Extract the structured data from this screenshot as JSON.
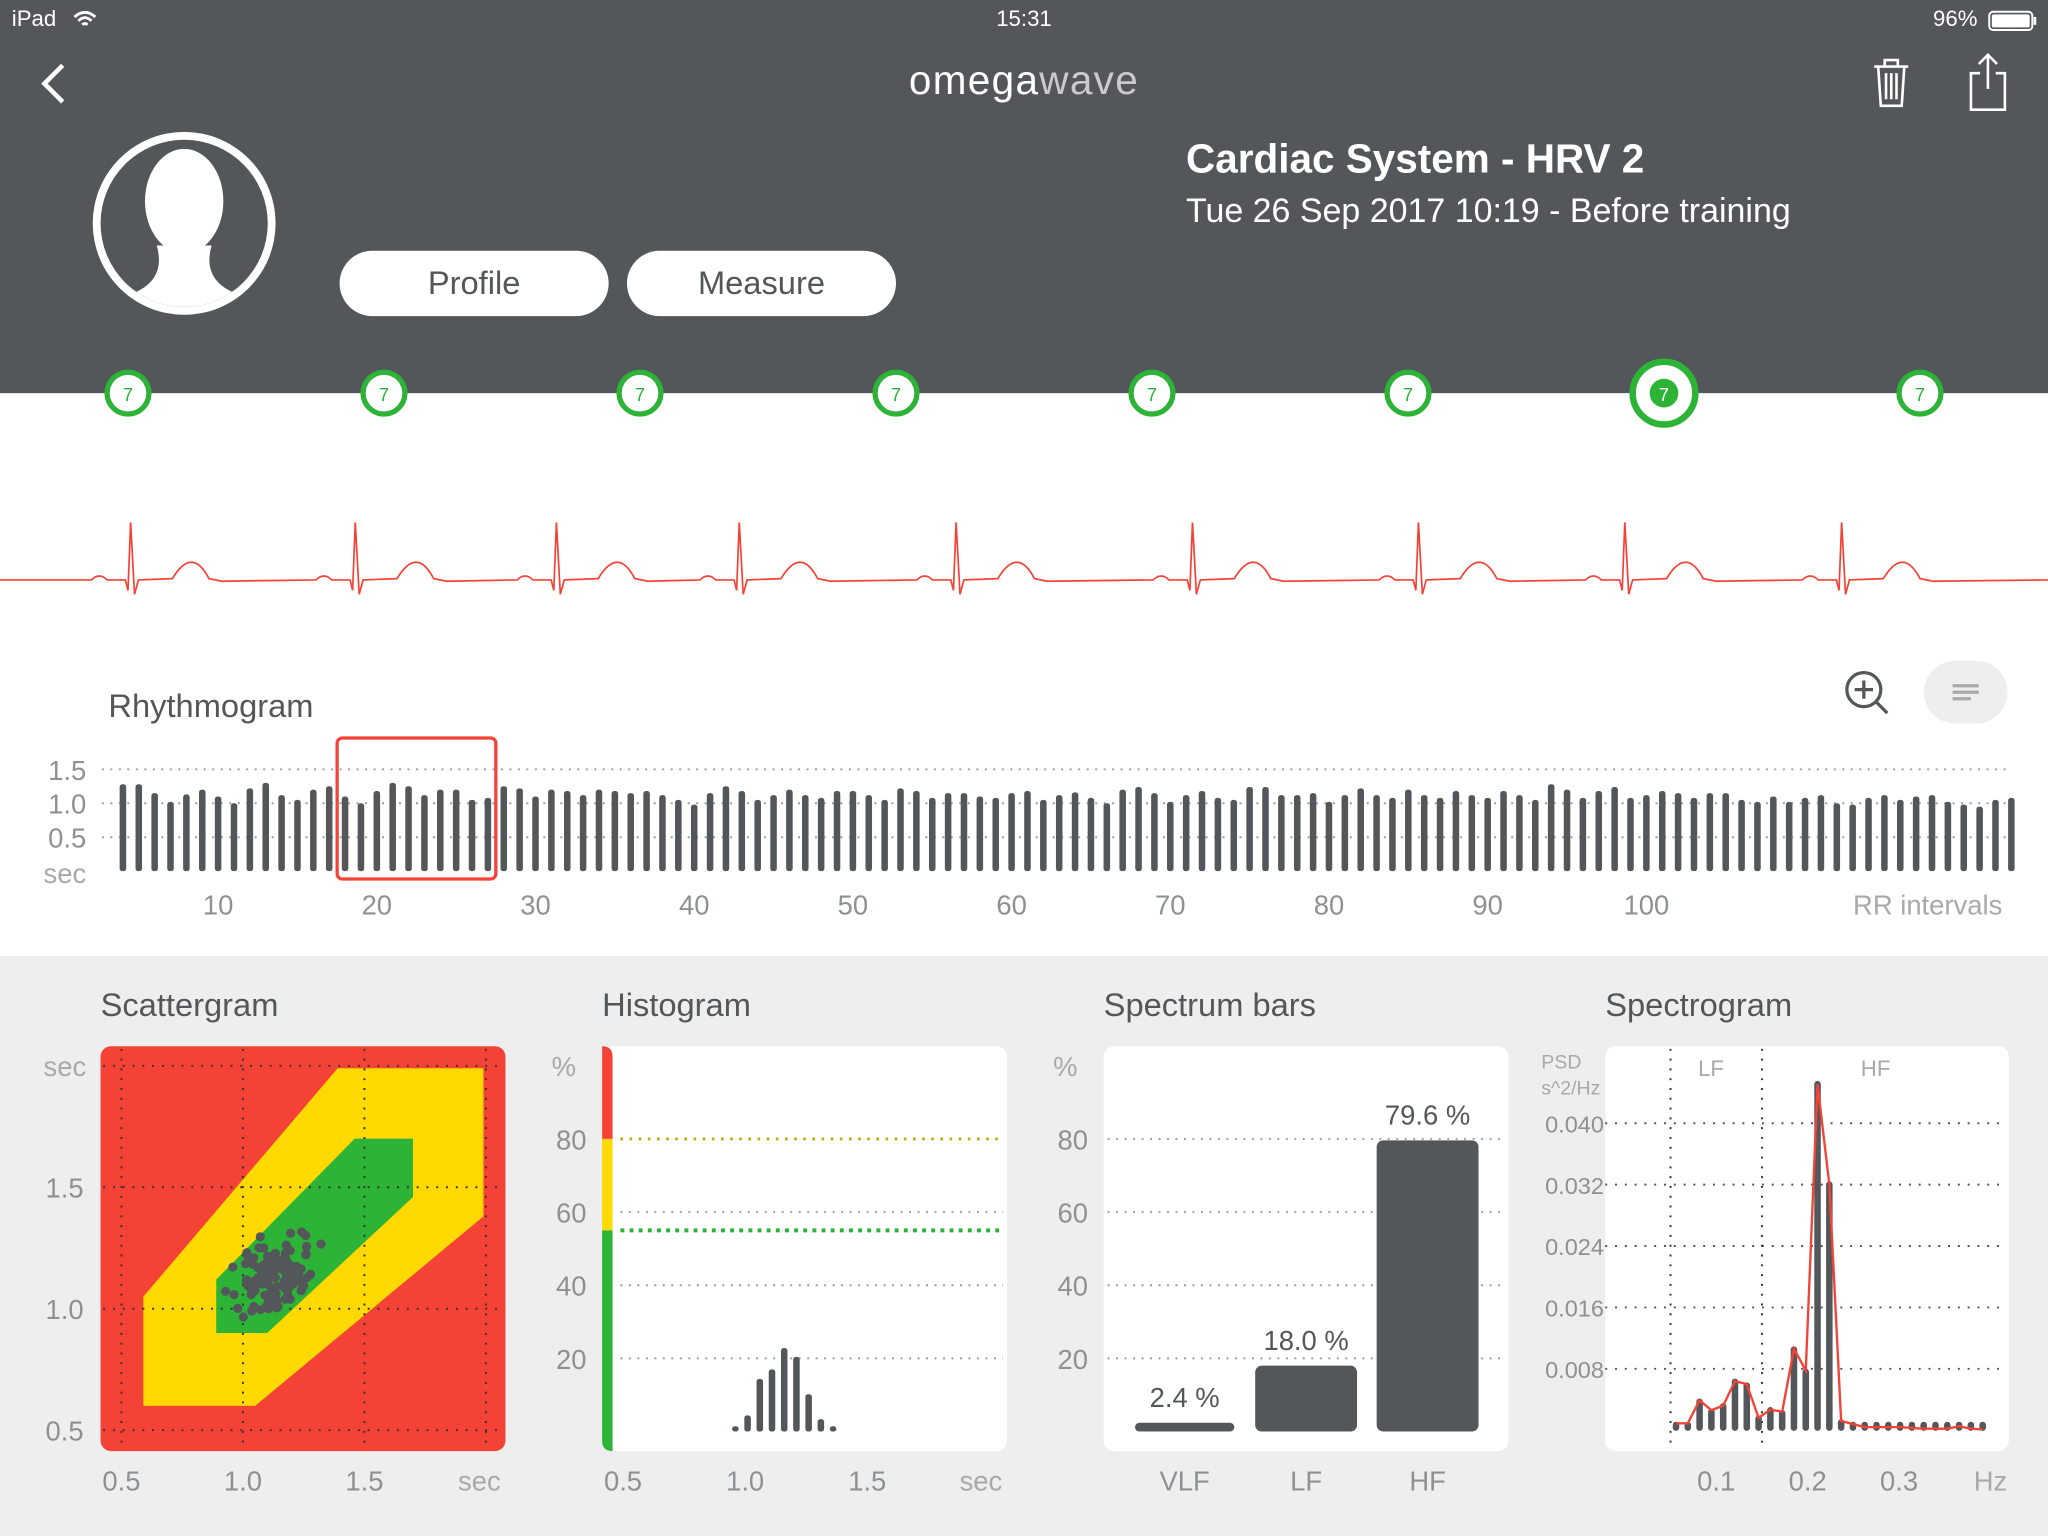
{
  "status_bar": {
    "device": "iPad",
    "time": "15:31",
    "battery": "96%"
  },
  "header": {
    "logo_part1": "omega",
    "logo_part2": "wave",
    "title": "Cardiac System - HRV 2",
    "subtitle": "Tue 26 Sep 2017 10:19 - Before training",
    "profile_label": "Profile",
    "measure_label": "Measure",
    "icons": [
      "back-chevron-icon",
      "trash-icon",
      "share-icon",
      "avatar-icon"
    ]
  },
  "timeline": {
    "items": [
      "7",
      "7",
      "7",
      "7",
      "7",
      "7",
      "7",
      "7"
    ],
    "selected_index": 6,
    "color": "#2db336"
  },
  "ecg": {
    "color": "#f44336"
  },
  "colors": {
    "dark": "#53575a",
    "red": "#f44336",
    "yellow": "#ffd900",
    "green": "#2db336",
    "panel_bg": "#eeeeee"
  },
  "chart_data": [
    {
      "id": "rhythmogram",
      "type": "bar",
      "title": "Rhythmogram",
      "xlabel": "RR intervals",
      "ylabel": "sec",
      "x_ticks": [
        "10",
        "20",
        "30",
        "40",
        "50",
        "60",
        "70",
        "80",
        "90",
        "100"
      ],
      "y_ticks": [
        "1.5",
        "1.0",
        "0.5"
      ],
      "ylim": [
        0,
        1.6
      ],
      "first_index": 4,
      "selection": [
        18,
        27
      ],
      "values": [
        1.28,
        1.28,
        1.15,
        1.02,
        1.13,
        1.2,
        1.1,
        1.0,
        1.22,
        1.3,
        1.12,
        1.05,
        1.2,
        1.25,
        1.1,
        1.0,
        1.18,
        1.3,
        1.25,
        1.12,
        1.2,
        1.2,
        1.05,
        1.08,
        1.25,
        1.22,
        1.1,
        1.2,
        1.18,
        1.12,
        1.2,
        1.18,
        1.15,
        1.18,
        1.12,
        1.05,
        0.98,
        1.15,
        1.25,
        1.18,
        1.05,
        1.12,
        1.2,
        1.12,
        1.08,
        1.18,
        1.18,
        1.12,
        1.05,
        1.22,
        1.18,
        1.08,
        1.15,
        1.15,
        1.1,
        1.08,
        1.15,
        1.18,
        1.05,
        1.12,
        1.16,
        1.08,
        1.0,
        1.2,
        1.24,
        1.15,
        1.02,
        1.12,
        1.18,
        1.08,
        1.05,
        1.24,
        1.24,
        1.12,
        1.12,
        1.15,
        1.02,
        1.12,
        1.22,
        1.12,
        1.08,
        1.2,
        1.12,
        1.08,
        1.18,
        1.12,
        1.08,
        1.18,
        1.12,
        1.05,
        1.28,
        1.2,
        1.08,
        1.18,
        1.24,
        1.08,
        1.12,
        1.18,
        1.15,
        1.08,
        1.15,
        1.15,
        1.05,
        1.02,
        1.1,
        1.02,
        1.08,
        1.12,
        1.0,
        0.98,
        1.08,
        1.12,
        1.05,
        1.1,
        1.12,
        1.02,
        0.98,
        0.95,
        1.05,
        1.08
      ],
      "toolbar": {
        "zoom_icon": "zoom-in-icon",
        "menu_icon": "menu-lines-icon"
      }
    },
    {
      "id": "scattergram",
      "type": "scatter",
      "title": "Scattergram",
      "xlabel": "sec",
      "ylabel": "sec",
      "x_ticks": [
        "0.5",
        "1.0",
        "1.5"
      ],
      "y_ticks": [
        "1.5",
        "1.0",
        "0.5"
      ],
      "xlim": [
        0.41,
        2.08
      ],
      "ylim": [
        0.41,
        2.08
      ],
      "points_from": "rhythmogram successive RR pairs",
      "zones": {
        "red": "background",
        "yellow": [
          [
            0.59,
            1.05
          ],
          [
            1.39,
            1.99
          ],
          [
            1.99,
            1.99
          ],
          [
            1.99,
            1.38
          ],
          [
            1.05,
            0.6
          ],
          [
            0.59,
            0.6
          ]
        ],
        "green": [
          [
            0.89,
            1.12
          ],
          [
            1.46,
            1.7
          ],
          [
            1.7,
            1.7
          ],
          [
            1.7,
            1.46
          ],
          [
            1.1,
            0.9
          ],
          [
            0.89,
            0.9
          ]
        ]
      }
    },
    {
      "id": "histogram",
      "type": "bar",
      "title": "Histogram",
      "xlabel": "sec",
      "ylabel": "%",
      "x_ticks": [
        "0.5",
        "1.0",
        "1.5"
      ],
      "y_ticks": [
        "80",
        "60",
        "40",
        "20"
      ],
      "ylim": [
        0,
        105
      ],
      "zone_thresholds": {
        "red_above": 80,
        "green_below": 55
      },
      "bins": [
        0.96,
        1.01,
        1.06,
        1.11,
        1.16,
        1.21,
        1.26,
        1.31,
        1.36
      ],
      "values": [
        0.5,
        4.4,
        14.4,
        17.0,
        22.8,
        20.4,
        10.2,
        3.4,
        0.8
      ]
    },
    {
      "id": "spectrum-bars",
      "type": "bar",
      "title": "Spectrum bars",
      "ylabel": "%",
      "y_ticks": [
        "80",
        "60",
        "40",
        "20"
      ],
      "ylim": [
        0,
        105
      ],
      "categories": [
        "VLF",
        "LF",
        "HF"
      ],
      "values": [
        2.4,
        18.0,
        79.6
      ],
      "labels": [
        "2.4 %",
        "18.0 %",
        "79.6 %"
      ]
    },
    {
      "id": "spectrogram",
      "type": "bar",
      "title": "Spectrogram",
      "xlabel": "Hz",
      "ylabel": "PSD",
      "yunit": "s^2/Hz",
      "x_ticks": [
        "0.1",
        "0.2",
        "0.3"
      ],
      "y_ticks": [
        "0.040",
        "0.032",
        "0.024",
        "0.016",
        "0.008"
      ],
      "band_labels": [
        "LF",
        "HF"
      ],
      "band_edges": [
        0.05,
        0.15
      ],
      "xlim": [
        0.0,
        0.44
      ],
      "ylim": [
        0,
        0.05
      ],
      "freq_start": 0.056,
      "freq_step": 0.0129,
      "values": [
        0.0006,
        0.0006,
        0.0037,
        0.0024,
        0.0031,
        0.0063,
        0.0058,
        0.0015,
        0.0026,
        0.0022,
        0.0105,
        0.0076,
        0.0451,
        0.032,
        0.001,
        0.0006,
        0.0003,
        0.0003,
        0.0003,
        0.0003,
        0.0002,
        0.0002,
        0.0002,
        0.0002,
        0.0003,
        0.0002,
        0.0002
      ],
      "line_values": [
        0.0009,
        0.0009,
        0.0039,
        0.0026,
        0.0032,
        0.0064,
        0.006,
        0.0016,
        0.0027,
        0.0024,
        0.0106,
        0.0078,
        0.0451,
        0.032,
        0.0012,
        0.0008,
        0.0004,
        0.0004,
        0.0004,
        0.0004,
        0.0003,
        0.0002,
        0.0002,
        0.0002,
        0.0005,
        0.0002,
        0.0001
      ]
    }
  ]
}
